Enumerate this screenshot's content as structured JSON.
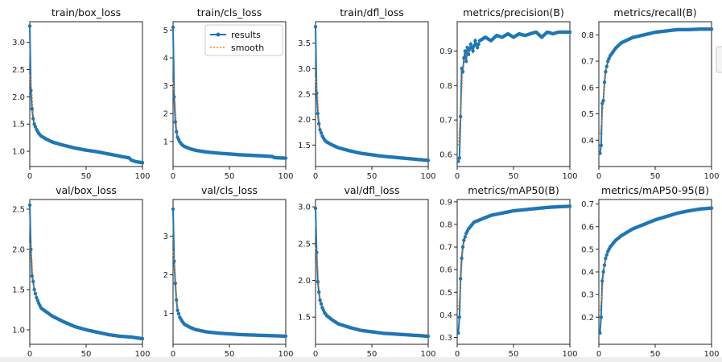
{
  "legend": {
    "results": "results",
    "smooth": "smooth"
  },
  "colors": {
    "results": "#1f77b4",
    "smooth": "#ff7f0e"
  },
  "chart_data": [
    {
      "type": "line",
      "title": "train/box_loss",
      "xlim": [
        0,
        100
      ],
      "ylim": [
        0.72,
        3.38
      ],
      "xticks": [
        0,
        50,
        100
      ],
      "yticks": [
        1.0,
        1.5,
        2.0,
        2.5,
        3.0
      ],
      "ytick_labels": [
        "1.0",
        "1.5",
        "2.0",
        "2.5",
        "3.0"
      ],
      "anchors": [
        [
          0,
          3.3
        ],
        [
          1,
          2.12
        ],
        [
          2,
          1.78
        ],
        [
          3,
          1.6
        ],
        [
          4,
          1.5
        ],
        [
          6,
          1.4
        ],
        [
          8,
          1.33
        ],
        [
          10,
          1.28
        ],
        [
          15,
          1.22
        ],
        [
          20,
          1.17
        ],
        [
          30,
          1.11
        ],
        [
          40,
          1.06
        ],
        [
          50,
          1.02
        ],
        [
          60,
          0.99
        ],
        [
          70,
          0.95
        ],
        [
          80,
          0.91
        ],
        [
          88,
          0.88
        ],
        [
          90,
          0.84
        ],
        [
          94,
          0.81
        ],
        [
          100,
          0.79
        ]
      ]
    },
    {
      "type": "line",
      "title": "train/cls_loss",
      "xlim": [
        0,
        100
      ],
      "ylim": [
        0.1,
        5.3
      ],
      "xticks": [
        0,
        50,
        100
      ],
      "yticks": [
        1,
        2,
        3,
        4,
        5
      ],
      "ytick_labels": [
        "1",
        "2",
        "3",
        "4",
        "5"
      ],
      "legend_loc": "upper right",
      "anchors": [
        [
          0,
          5.1
        ],
        [
          1,
          2.6
        ],
        [
          2,
          1.7
        ],
        [
          3,
          1.35
        ],
        [
          4,
          1.15
        ],
        [
          6,
          0.98
        ],
        [
          8,
          0.88
        ],
        [
          10,
          0.82
        ],
        [
          15,
          0.74
        ],
        [
          20,
          0.68
        ],
        [
          30,
          0.62
        ],
        [
          40,
          0.58
        ],
        [
          50,
          0.55
        ],
        [
          60,
          0.52
        ],
        [
          70,
          0.5
        ],
        [
          80,
          0.48
        ],
        [
          88,
          0.46
        ],
        [
          90,
          0.42
        ],
        [
          94,
          0.41
        ],
        [
          100,
          0.4
        ]
      ]
    },
    {
      "type": "line",
      "title": "train/dfl_loss",
      "xlim": [
        0,
        100
      ],
      "ylim": [
        1.08,
        3.92
      ],
      "xticks": [
        0,
        50,
        100
      ],
      "yticks": [
        1.5,
        2.0,
        2.5,
        3.0,
        3.5
      ],
      "ytick_labels": [
        "1.5",
        "2.0",
        "2.5",
        "3.0",
        "3.5"
      ],
      "anchors": [
        [
          0,
          3.82
        ],
        [
          1,
          2.52
        ],
        [
          2,
          2.12
        ],
        [
          3,
          1.92
        ],
        [
          4,
          1.8
        ],
        [
          6,
          1.68
        ],
        [
          8,
          1.6
        ],
        [
          10,
          1.56
        ],
        [
          15,
          1.5
        ],
        [
          20,
          1.45
        ],
        [
          30,
          1.39
        ],
        [
          40,
          1.34
        ],
        [
          50,
          1.31
        ],
        [
          60,
          1.28
        ],
        [
          70,
          1.26
        ],
        [
          80,
          1.24
        ],
        [
          90,
          1.22
        ],
        [
          100,
          1.2
        ]
      ]
    },
    {
      "type": "line",
      "title": "metrics/precision(B)",
      "xlim": [
        0,
        100
      ],
      "ylim": [
        0.565,
        0.985
      ],
      "xticks": [
        0,
        50,
        100
      ],
      "yticks": [
        0.6,
        0.7,
        0.8,
        0.9
      ],
      "ytick_labels": [
        "0.6",
        "0.7",
        "0.8",
        "0.9"
      ],
      "anchors": [
        [
          1,
          0.58
        ],
        [
          2,
          0.59
        ],
        [
          3,
          0.71
        ],
        [
          4,
          0.85
        ],
        [
          5,
          0.84
        ],
        [
          6,
          0.88
        ],
        [
          7,
          0.9
        ],
        [
          8,
          0.87
        ],
        [
          9,
          0.91
        ],
        [
          10,
          0.89
        ],
        [
          12,
          0.92
        ],
        [
          14,
          0.9
        ],
        [
          16,
          0.93
        ],
        [
          18,
          0.91
        ],
        [
          20,
          0.93
        ],
        [
          25,
          0.94
        ],
        [
          30,
          0.93
        ],
        [
          35,
          0.945
        ],
        [
          40,
          0.94
        ],
        [
          45,
          0.95
        ],
        [
          50,
          0.94
        ],
        [
          55,
          0.95
        ],
        [
          60,
          0.945
        ],
        [
          65,
          0.95
        ],
        [
          70,
          0.955
        ],
        [
          75,
          0.94
        ],
        [
          80,
          0.955
        ],
        [
          85,
          0.95
        ],
        [
          90,
          0.955
        ],
        [
          95,
          0.955
        ],
        [
          100,
          0.955
        ]
      ]
    },
    {
      "type": "line",
      "title": "metrics/recall(B)",
      "xlim": [
        0,
        100
      ],
      "ylim": [
        0.3,
        0.85
      ],
      "xticks": [
        0,
        50,
        100
      ],
      "yticks": [
        0.4,
        0.5,
        0.6,
        0.7,
        0.8
      ],
      "ytick_labels": [
        "0.4",
        "0.5",
        "0.6",
        "0.7",
        "0.8"
      ],
      "anchors": [
        [
          1,
          0.35
        ],
        [
          2,
          0.38
        ],
        [
          3,
          0.54
        ],
        [
          4,
          0.55
        ],
        [
          5,
          0.62
        ],
        [
          6,
          0.66
        ],
        [
          8,
          0.7
        ],
        [
          10,
          0.72
        ],
        [
          15,
          0.75
        ],
        [
          20,
          0.77
        ],
        [
          25,
          0.78
        ],
        [
          30,
          0.79
        ],
        [
          40,
          0.8
        ],
        [
          50,
          0.81
        ],
        [
          60,
          0.815
        ],
        [
          70,
          0.82
        ],
        [
          80,
          0.82
        ],
        [
          90,
          0.822
        ],
        [
          100,
          0.822
        ]
      ]
    },
    {
      "type": "line",
      "title": "val/box_loss",
      "xlim": [
        0,
        100
      ],
      "ylim": [
        0.82,
        2.62
      ],
      "xticks": [
        0,
        50,
        100
      ],
      "yticks": [
        1.0,
        1.5,
        2.0,
        2.5
      ],
      "ytick_labels": [
        "1.0",
        "1.5",
        "2.0",
        "2.5"
      ],
      "anchors": [
        [
          0,
          2.55
        ],
        [
          1,
          2.0
        ],
        [
          2,
          1.67
        ],
        [
          3,
          1.6
        ],
        [
          4,
          1.5
        ],
        [
          6,
          1.4
        ],
        [
          8,
          1.33
        ],
        [
          10,
          1.27
        ],
        [
          15,
          1.22
        ],
        [
          20,
          1.17
        ],
        [
          30,
          1.1
        ],
        [
          40,
          1.04
        ],
        [
          50,
          1.0
        ],
        [
          60,
          0.97
        ],
        [
          70,
          0.94
        ],
        [
          80,
          0.92
        ],
        [
          90,
          0.91
        ],
        [
          100,
          0.89
        ]
      ]
    },
    {
      "type": "line",
      "title": "val/cls_loss",
      "xlim": [
        0,
        100
      ],
      "ylim": [
        0.2,
        3.95
      ],
      "xticks": [
        0,
        50,
        100
      ],
      "yticks": [
        1,
        2,
        3
      ],
      "ytick_labels": [
        "1",
        "2",
        "3"
      ],
      "anchors": [
        [
          0,
          3.7
        ],
        [
          1,
          2.35
        ],
        [
          2,
          1.78
        ],
        [
          3,
          1.35
        ],
        [
          4,
          1.08
        ],
        [
          6,
          0.9
        ],
        [
          8,
          0.8
        ],
        [
          10,
          0.72
        ],
        [
          15,
          0.64
        ],
        [
          20,
          0.58
        ],
        [
          30,
          0.52
        ],
        [
          40,
          0.49
        ],
        [
          50,
          0.47
        ],
        [
          60,
          0.45
        ],
        [
          70,
          0.44
        ],
        [
          80,
          0.43
        ],
        [
          90,
          0.42
        ],
        [
          100,
          0.41
        ]
      ]
    },
    {
      "type": "line",
      "title": "val/dfl_loss",
      "xlim": [
        0,
        100
      ],
      "ylim": [
        1.13,
        3.1
      ],
      "xticks": [
        0,
        50,
        100
      ],
      "yticks": [
        1.5,
        2.0,
        2.5,
        3.0
      ],
      "ytick_labels": [
        "1.5",
        "2.0",
        "2.5",
        "3.0"
      ],
      "anchors": [
        [
          0,
          2.98
        ],
        [
          1,
          2.38
        ],
        [
          2,
          1.98
        ],
        [
          3,
          1.84
        ],
        [
          4,
          1.73
        ],
        [
          6,
          1.63
        ],
        [
          8,
          1.56
        ],
        [
          10,
          1.52
        ],
        [
          15,
          1.46
        ],
        [
          20,
          1.41
        ],
        [
          30,
          1.36
        ],
        [
          40,
          1.32
        ],
        [
          50,
          1.3
        ],
        [
          60,
          1.28
        ],
        [
          70,
          1.27
        ],
        [
          80,
          1.26
        ],
        [
          90,
          1.25
        ],
        [
          100,
          1.24
        ]
      ]
    },
    {
      "type": "line",
      "title": "metrics/mAP50(B)",
      "xlim": [
        0,
        100
      ],
      "ylim": [
        0.27,
        0.91
      ],
      "xticks": [
        0,
        50,
        100
      ],
      "yticks": [
        0.3,
        0.4,
        0.5,
        0.6,
        0.7,
        0.8,
        0.9
      ],
      "ytick_labels": [
        "0.3",
        "0.4",
        "0.5",
        "0.6",
        "0.7",
        "0.8",
        "0.9"
      ],
      "xtick_labels": [
        "0",
        "50",
        "100"
      ],
      "anchors": [
        [
          1,
          0.32
        ],
        [
          2,
          0.39
        ],
        [
          3,
          0.56
        ],
        [
          4,
          0.65
        ],
        [
          5,
          0.7
        ],
        [
          6,
          0.73
        ],
        [
          8,
          0.76
        ],
        [
          10,
          0.78
        ],
        [
          15,
          0.81
        ],
        [
          20,
          0.82
        ],
        [
          30,
          0.84
        ],
        [
          40,
          0.85
        ],
        [
          50,
          0.86
        ],
        [
          60,
          0.865
        ],
        [
          70,
          0.87
        ],
        [
          80,
          0.875
        ],
        [
          90,
          0.878
        ],
        [
          100,
          0.88
        ]
      ]
    },
    {
      "type": "line",
      "title": "metrics/mAP50-95(B)",
      "xlim": [
        0,
        100
      ],
      "ylim": [
        0.08,
        0.72
      ],
      "xticks": [
        0,
        50,
        100
      ],
      "yticks": [
        0.2,
        0.3,
        0.4,
        0.5,
        0.6,
        0.7
      ],
      "ytick_labels": [
        "0.2",
        "0.3",
        "0.4",
        "0.5",
        "0.6",
        "0.7"
      ],
      "xtick_labels": [
        "0",
        "50",
        "100"
      ],
      "anchors": [
        [
          1,
          0.13
        ],
        [
          2,
          0.2
        ],
        [
          3,
          0.36
        ],
        [
          4,
          0.4
        ],
        [
          5,
          0.43
        ],
        [
          6,
          0.46
        ],
        [
          8,
          0.49
        ],
        [
          10,
          0.51
        ],
        [
          15,
          0.54
        ],
        [
          20,
          0.56
        ],
        [
          30,
          0.59
        ],
        [
          40,
          0.61
        ],
        [
          50,
          0.63
        ],
        [
          60,
          0.645
        ],
        [
          70,
          0.66
        ],
        [
          80,
          0.67
        ],
        [
          90,
          0.678
        ],
        [
          100,
          0.682
        ]
      ]
    }
  ]
}
